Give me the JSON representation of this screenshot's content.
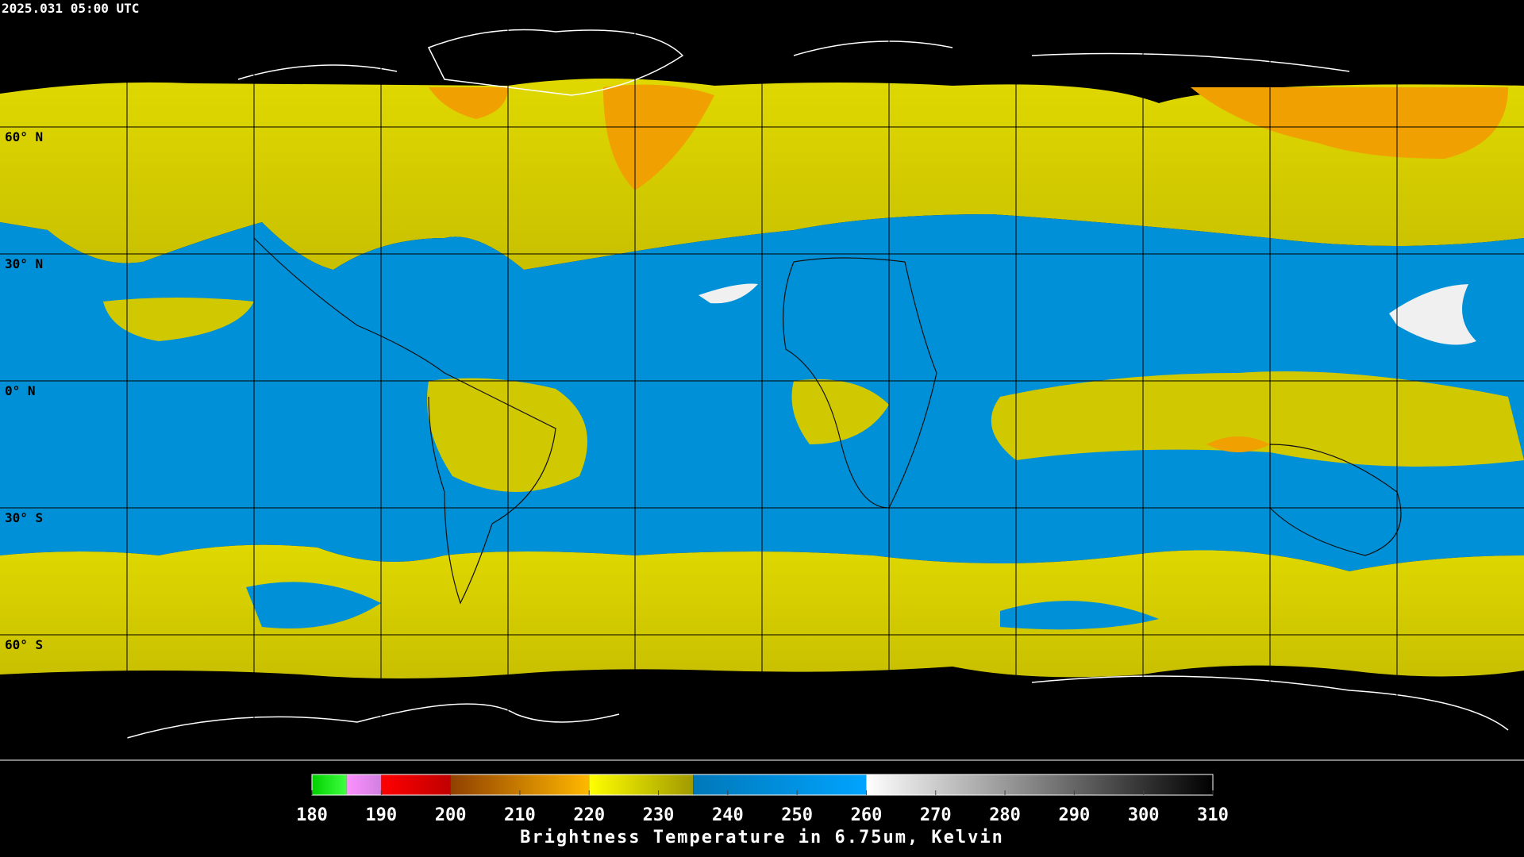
{
  "header": {
    "timestamp": "2025.031 05:00 UTC"
  },
  "map": {
    "lat_labels": [
      "60° N",
      "30° N",
      "0° N",
      "30° S",
      "60° S"
    ]
  },
  "colorbar": {
    "range": [
      180,
      310
    ],
    "ticks": [
      180,
      190,
      200,
      210,
      220,
      230,
      240,
      250,
      260,
      270,
      280,
      290,
      300,
      310
    ],
    "label": "Brightness Temperature in 6.75um, Kelvin",
    "segments": [
      {
        "from": 180,
        "to": 185,
        "colors": [
          "#00d000",
          "#40ff40"
        ]
      },
      {
        "from": 185,
        "to": 190,
        "colors": [
          "#ff90ff",
          "#d080e0"
        ]
      },
      {
        "from": 190,
        "to": 200,
        "colors": [
          "#ff0000",
          "#c00000"
        ]
      },
      {
        "from": 200,
        "to": 220,
        "colors": [
          "#904000",
          "#ffb800"
        ]
      },
      {
        "from": 220,
        "to": 235,
        "colors": [
          "#ffff00",
          "#a09a00"
        ]
      },
      {
        "from": 235,
        "to": 260,
        "colors": [
          "#0078b8",
          "#00a4ff"
        ]
      },
      {
        "from": 260,
        "to": 310,
        "colors": [
          "#ffffff",
          "#000000"
        ]
      }
    ]
  }
}
